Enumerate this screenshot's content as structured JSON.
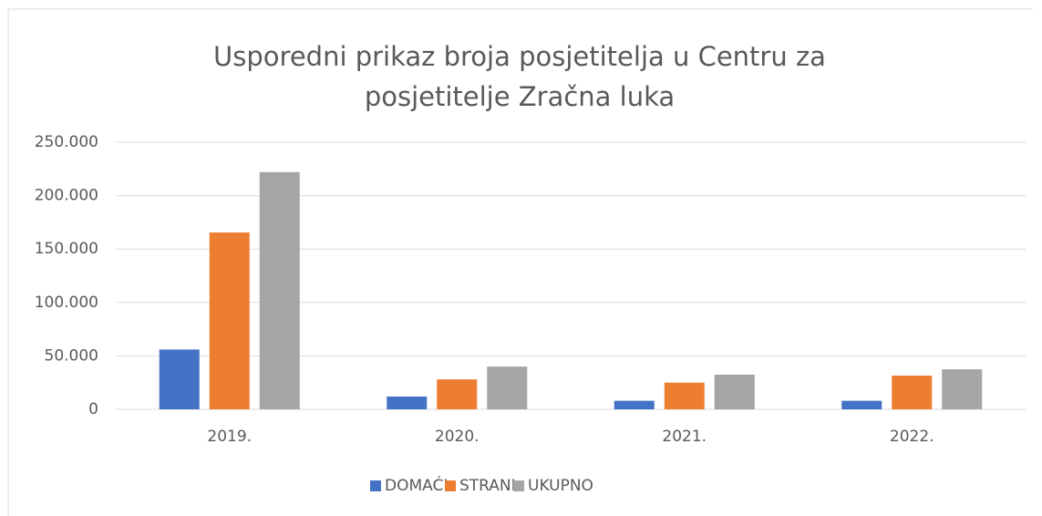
{
  "chart_data": {
    "type": "bar",
    "title": "Usporedni prikaz broja posjetitelja u Centru za posjetitelje Zračna luka",
    "categories": [
      "2019.",
      "2020.",
      "2021.",
      "2022."
    ],
    "series": [
      {
        "name": "DOMAĆI",
        "color": "#4472c4",
        "values": [
          56000,
          12000,
          8000,
          8000
        ]
      },
      {
        "name": "STRANI",
        "color": "#ed7d31",
        "values": [
          165500,
          28000,
          25000,
          31500
        ]
      },
      {
        "name": "UKUPNO",
        "color": "#a5a5a5",
        "values": [
          222000,
          40000,
          32500,
          37500
        ]
      }
    ],
    "ylim": [
      0,
      250000
    ],
    "yticks": [
      0,
      {
        "value": 50000,
        "label": "50.000"
      },
      {
        "value": 100000,
        "label": "100.000"
      },
      {
        "value": 150000,
        "label": "150.000"
      },
      {
        "value": 200000,
        "label": "200.000"
      },
      {
        "value": 250000,
        "label": "250.000"
      }
    ],
    "grid": true,
    "legend": "bottom"
  }
}
